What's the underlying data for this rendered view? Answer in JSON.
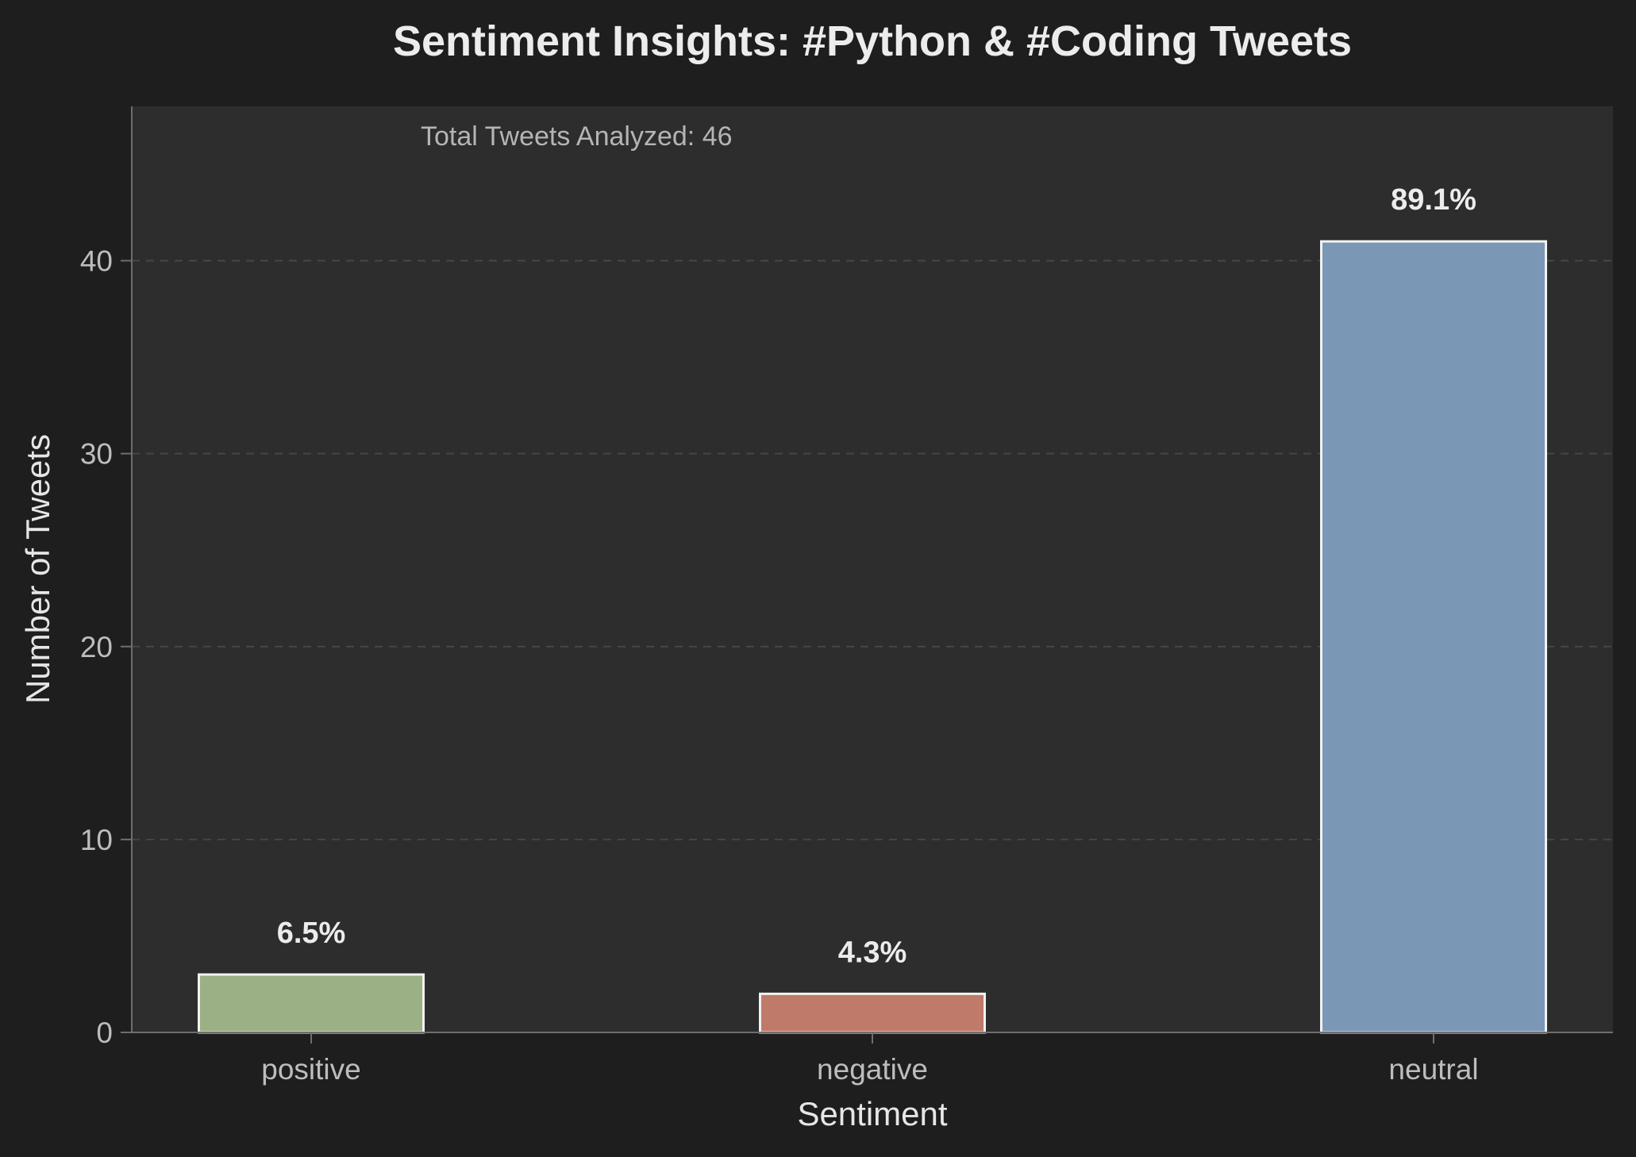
{
  "chart_data": {
    "type": "bar",
    "title": "Sentiment Insights: #Python & #Coding Tweets",
    "xlabel": "Sentiment",
    "ylabel": "Number of Tweets",
    "categories": [
      "positive",
      "negative",
      "neutral"
    ],
    "values": [
      3,
      2,
      41
    ],
    "bar_labels": [
      "6.5%",
      "4.3%",
      "89.1%"
    ],
    "bar_colors": [
      "#9bb084",
      "#c07a6a",
      "#7a97b5"
    ],
    "ylim": [
      0,
      48
    ],
    "yticks": [
      0,
      10,
      20,
      30,
      40
    ],
    "grid": true,
    "annotation": "Total Tweets Analyzed: 46"
  },
  "colors": {
    "page_background": "#1e1e1e",
    "plot_background": "#2d2d2d",
    "bar_edge": "#f2f2f2",
    "grid": "#464646",
    "axis": "#6e6e6e"
  }
}
